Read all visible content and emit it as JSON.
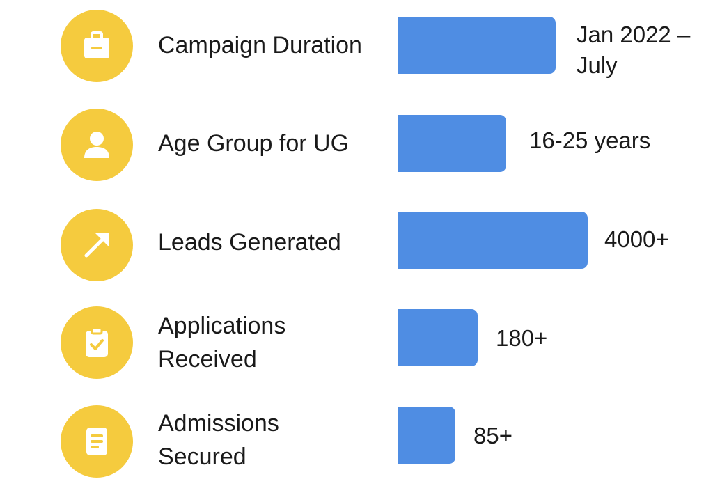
{
  "chart_data": {
    "type": "bar",
    "orientation": "horizontal",
    "categories": [
      "Campaign Duration",
      "Age Group for UG",
      "Leads Generated",
      "Applications Received",
      "Admissions Secured"
    ],
    "value_labels": [
      "Jan 2022 – July",
      "16-25 years",
      "4000+",
      "180+",
      "85+"
    ],
    "bar_levels": [
      0.83,
      0.57,
      1.0,
      0.42,
      0.3
    ],
    "icons": [
      "briefcase-icon",
      "user-icon",
      "arrow-up-right-icon",
      "clipboard-check-icon",
      "document-icon"
    ],
    "grid": false,
    "legend": "none"
  },
  "colors": {
    "bar": "#4F8DE3",
    "icon_circle": "#F5CB3E",
    "icon_glyph": "#FFFFFF"
  }
}
